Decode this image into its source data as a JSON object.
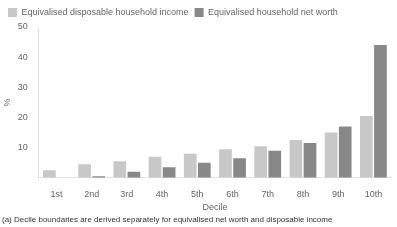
{
  "chart_data": {
    "type": "bar",
    "categories": [
      "1st",
      "2nd",
      "3rd",
      "4th",
      "5th",
      "6th",
      "7th",
      "8th",
      "9th",
      "10th"
    ],
    "series": [
      {
        "name": "Equivalised disposable household income",
        "color": "#c8c8c8",
        "values": [
          2.5,
          4.5,
          5.5,
          7.0,
          8.0,
          9.5,
          10.5,
          12.5,
          15.0,
          20.5
        ]
      },
      {
        "name": "Equivalised household net worth",
        "color": "#888888",
        "values": [
          0.0,
          0.5,
          2.0,
          3.5,
          5.0,
          6.5,
          9.0,
          11.5,
          17.0,
          44.0
        ]
      }
    ],
    "xlabel": "Decile",
    "ylabel": "%",
    "ylim": [
      0,
      50
    ],
    "yticks": [
      {
        "value": 0,
        "label": ""
      },
      10,
      20,
      30,
      40,
      50
    ],
    "footnote": "(a) Decile boundaries are derived separately for equivalised net worth and disposable income",
    "legend": "upper left",
    "grid": false
  }
}
